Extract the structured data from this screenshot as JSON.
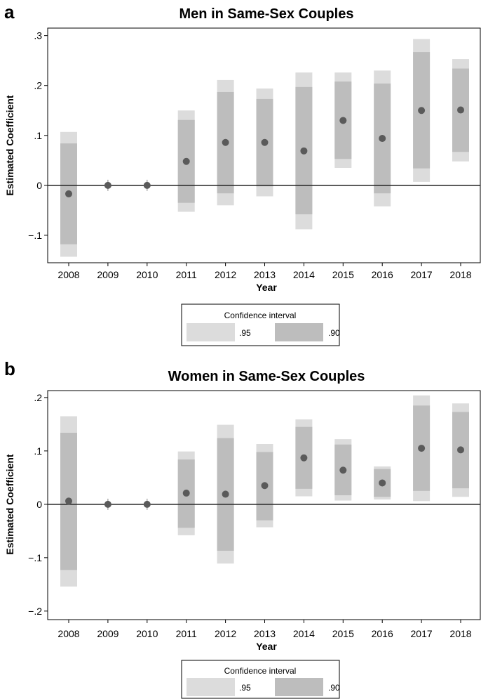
{
  "chart_data": [
    {
      "type": "scatter",
      "panel": "a",
      "title": "Men in Same-Sex Couples",
      "xlabel": "Year",
      "ylabel": "Estimated Coefficient",
      "ylim": [
        -0.155,
        0.315
      ],
      "yticks": [
        {
          "v": -0.1,
          "label": "−.1"
        },
        {
          "v": 0,
          "label": "0"
        },
        {
          "v": 0.1,
          "label": ".1"
        },
        {
          "v": 0.2,
          "label": ".2"
        },
        {
          "v": 0.3,
          "label": ".3"
        }
      ],
      "x": [
        "2008",
        "2009",
        "2010",
        "2011",
        "2012",
        "2013",
        "2014",
        "2015",
        "2016",
        "2017",
        "2018"
      ],
      "points": [
        {
          "year": "2008",
          "estimate": -0.017,
          "ci95": [
            -0.143,
            0.107
          ],
          "ci90": [
            -0.118,
            0.084
          ]
        },
        {
          "year": "2009",
          "estimate": 0,
          "ci95": null,
          "ci90": null
        },
        {
          "year": "2010",
          "estimate": 0,
          "ci95": null,
          "ci90": null
        },
        {
          "year": "2011",
          "estimate": 0.048,
          "ci95": [
            -0.053,
            0.15
          ],
          "ci90": [
            -0.035,
            0.131
          ]
        },
        {
          "year": "2012",
          "estimate": 0.086,
          "ci95": [
            -0.04,
            0.211
          ],
          "ci90": [
            -0.016,
            0.187
          ]
        },
        {
          "year": "2013",
          "estimate": 0.086,
          "ci95": [
            -0.022,
            0.194
          ],
          "ci90": [
            -0.002,
            0.173
          ]
        },
        {
          "year": "2014",
          "estimate": 0.069,
          "ci95": [
            -0.088,
            0.226
          ],
          "ci90": [
            -0.058,
            0.197
          ]
        },
        {
          "year": "2015",
          "estimate": 0.13,
          "ci95": [
            0.035,
            0.226
          ],
          "ci90": [
            0.053,
            0.208
          ]
        },
        {
          "year": "2016",
          "estimate": 0.094,
          "ci95": [
            -0.042,
            0.23
          ],
          "ci90": [
            -0.016,
            0.204
          ]
        },
        {
          "year": "2017",
          "estimate": 0.15,
          "ci95": [
            0.007,
            0.293
          ],
          "ci90": [
            0.034,
            0.267
          ]
        },
        {
          "year": "2018",
          "estimate": 0.151,
          "ci95": [
            0.048,
            0.253
          ],
          "ci90": [
            0.067,
            0.234
          ]
        }
      ],
      "legend": {
        "title": "Confidence interval",
        "entries": [
          ".95",
          ".90"
        ]
      },
      "colors": {
        "ci95": "#dcdcdc",
        "ci90": "#bdbdbd",
        "point": "#5a5a5a",
        "zero_line": "#222222",
        "ref_tick": "#9a9a9a"
      }
    },
    {
      "type": "scatter",
      "panel": "b",
      "title": "Women in Same-Sex Couples",
      "xlabel": "Year",
      "ylabel": "Estimated Coefficient",
      "ylim": [
        -0.216,
        0.213
      ],
      "yticks": [
        {
          "v": -0.2,
          "label": "−.2"
        },
        {
          "v": -0.1,
          "label": "−.1"
        },
        {
          "v": 0,
          "label": "0"
        },
        {
          "v": 0.1,
          "label": ".1"
        },
        {
          "v": 0.2,
          "label": ".2"
        }
      ],
      "x": [
        "2008",
        "2009",
        "2010",
        "2011",
        "2012",
        "2013",
        "2014",
        "2015",
        "2016",
        "2017",
        "2018"
      ],
      "points": [
        {
          "year": "2008",
          "estimate": 0.006,
          "ci95": [
            -0.154,
            0.165
          ],
          "ci90": [
            -0.123,
            0.134
          ]
        },
        {
          "year": "2009",
          "estimate": 0,
          "ci95": null,
          "ci90": null
        },
        {
          "year": "2010",
          "estimate": 0,
          "ci95": null,
          "ci90": null
        },
        {
          "year": "2011",
          "estimate": 0.021,
          "ci95": [
            -0.058,
            0.099
          ],
          "ci90": [
            -0.044,
            0.084
          ]
        },
        {
          "year": "2012",
          "estimate": 0.019,
          "ci95": [
            -0.111,
            0.149
          ],
          "ci90": [
            -0.087,
            0.124
          ]
        },
        {
          "year": "2013",
          "estimate": 0.035,
          "ci95": [
            -0.043,
            0.113
          ],
          "ci90": [
            -0.03,
            0.098
          ]
        },
        {
          "year": "2014",
          "estimate": 0.087,
          "ci95": [
            0.015,
            0.159
          ],
          "ci90": [
            0.029,
            0.145
          ]
        },
        {
          "year": "2015",
          "estimate": 0.064,
          "ci95": [
            0.007,
            0.122
          ],
          "ci90": [
            0.017,
            0.112
          ]
        },
        {
          "year": "2016",
          "estimate": 0.04,
          "ci95": [
            0.009,
            0.071
          ],
          "ci90": [
            0.014,
            0.066
          ]
        },
        {
          "year": "2017",
          "estimate": 0.105,
          "ci95": [
            0.006,
            0.204
          ],
          "ci90": [
            0.025,
            0.185
          ]
        },
        {
          "year": "2018",
          "estimate": 0.102,
          "ci95": [
            0.014,
            0.189
          ],
          "ci90": [
            0.03,
            0.173
          ]
        }
      ],
      "legend": {
        "title": "Confidence interval",
        "entries": [
          ".95",
          ".90"
        ]
      },
      "colors": {
        "ci95": "#dcdcdc",
        "ci90": "#bdbdbd",
        "point": "#5a5a5a",
        "zero_line": "#222222",
        "ref_tick": "#9a9a9a"
      }
    }
  ]
}
